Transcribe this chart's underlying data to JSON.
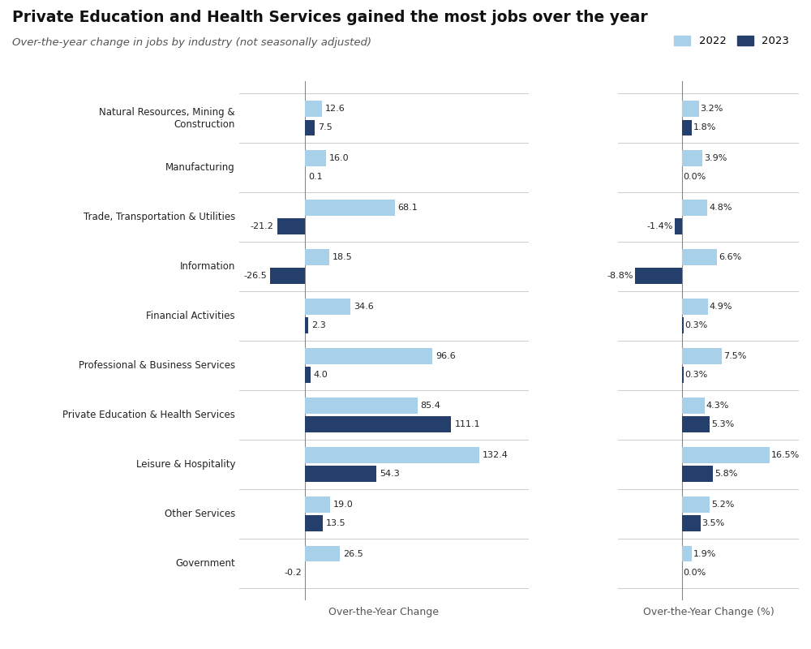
{
  "title": "Private Education and Health Services gained the most jobs over the year",
  "subtitle": "Over-the-year change in jobs by industry (not seasonally adjusted)",
  "xlabel_left": "Over-the-Year Change",
  "xlabel_right": "Over-the-Year Change (%)",
  "legend_2022": "2022",
  "legend_2023": "2023",
  "color_2022": "#a8d0e8",
  "color_2023": "#243f6b",
  "categories": [
    "Natural Resources, Mining &\nConstruction",
    "Manufacturing",
    "Trade, Transportation & Utilities",
    "Information",
    "Financial Activities",
    "Professional & Business Services",
    "Private Education & Health Services",
    "Leisure & Hospitality",
    "Other Services",
    "Government"
  ],
  "values_2022": [
    12.6,
    16.0,
    68.1,
    18.5,
    34.6,
    96.6,
    85.4,
    132.4,
    19.0,
    26.5
  ],
  "values_2023": [
    7.5,
    0.1,
    -21.2,
    -26.5,
    2.3,
    4.0,
    111.1,
    54.3,
    13.5,
    -0.2
  ],
  "pct_2022": [
    3.2,
    3.9,
    4.8,
    6.6,
    4.9,
    7.5,
    4.3,
    16.5,
    5.2,
    1.9
  ],
  "pct_2023": [
    1.8,
    0.0,
    -1.4,
    -8.8,
    0.3,
    0.3,
    5.3,
    5.8,
    3.5,
    0.0
  ],
  "xlim_left": [
    -50,
    170
  ],
  "xlim_right": [
    -12,
    22
  ],
  "bar_height": 0.32,
  "figsize": [
    10,
    8
  ]
}
